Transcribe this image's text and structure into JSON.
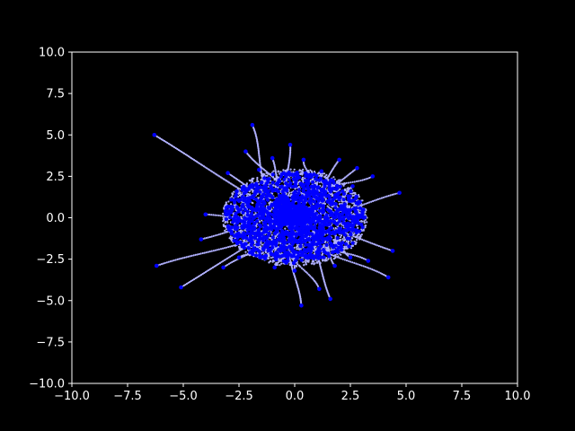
{
  "colors": {
    "background": "#000000",
    "axes": "#ffffff",
    "point": "#0000ff",
    "trail": "#b0b0ff"
  },
  "chart_data": {
    "type": "scatter",
    "title": "",
    "xlabel": "",
    "ylabel": "",
    "xlim": [
      -10,
      10
    ],
    "ylim": [
      -10,
      10
    ],
    "grid": false,
    "legend": "none",
    "x_ticks": [
      -10.0,
      -7.5,
      -5.0,
      -2.5,
      0.0,
      2.5,
      5.0,
      7.5,
      10.0
    ],
    "y_ticks": [
      -10.0,
      -7.5,
      -5.0,
      -2.5,
      0.0,
      2.5,
      5.0,
      7.5,
      10.0
    ],
    "x_tick_labels": [
      "−10.0",
      "−7.5",
      "−5.0",
      "−2.5",
      "0.0",
      "2.5",
      "5.0",
      "7.5",
      "10.0"
    ],
    "y_tick_labels": [
      "−10.0",
      "−7.5",
      "−5.0",
      "−2.5",
      "0.0",
      "2.5",
      "5.0",
      "7.5",
      "10.0"
    ],
    "series": [
      {
        "values": [
          {
            "x": -6.3,
            "y": 5.0
          },
          {
            "x": -6.2,
            "y": -2.9
          },
          {
            "x": -5.1,
            "y": -4.2
          },
          {
            "x": -1.9,
            "y": 5.6
          },
          {
            "x": -0.2,
            "y": 4.4
          },
          {
            "x": 0.3,
            "y": -5.3
          },
          {
            "x": 1.6,
            "y": -4.9
          },
          {
            "x": 4.7,
            "y": 1.5
          },
          {
            "x": 4.2,
            "y": -3.6
          },
          {
            "x": 4.4,
            "y": -2.0
          },
          {
            "x": 3.5,
            "y": 2.5
          },
          {
            "x": 2.8,
            "y": 3.0
          },
          {
            "x": -2.2,
            "y": 4.0
          },
          {
            "x": -3.0,
            "y": 2.7
          },
          {
            "x": -4.0,
            "y": 0.2
          },
          {
            "x": -4.2,
            "y": -1.3
          },
          {
            "x": -3.2,
            "y": -3.0
          },
          {
            "x": 1.1,
            "y": -4.3
          },
          {
            "x": 3.3,
            "y": -2.6
          },
          {
            "x": 2.0,
            "y": 3.5
          },
          {
            "x": 0.4,
            "y": 3.5
          },
          {
            "x": -1.0,
            "y": 3.6
          },
          {
            "x": 2.6,
            "y": 1.9
          },
          {
            "x": -2.6,
            "y": 1.6
          },
          {
            "x": -2.5,
            "y": -2.4
          },
          {
            "x": 2.5,
            "y": -2.4
          },
          {
            "x": 0.0,
            "y": -3.2
          },
          {
            "x": -0.9,
            "y": -3.0
          },
          {
            "x": 1.8,
            "y": -2.9
          },
          {
            "x": -1.6,
            "y": 2.9
          },
          {
            "x": 1.2,
            "y": 2.8
          },
          {
            "x": 3.1,
            "y": 0.0
          },
          {
            "x": -3.1,
            "y": 0.4
          },
          {
            "x": 0.0,
            "y": 0.0
          },
          {
            "x": 0.5,
            "y": 0.3
          },
          {
            "x": -0.5,
            "y": -0.4
          },
          {
            "x": 0.8,
            "y": -0.6
          },
          {
            "x": -0.7,
            "y": 0.7
          },
          {
            "x": 1.5,
            "y": 1.0
          },
          {
            "x": -1.4,
            "y": -1.2
          },
          {
            "x": 1.0,
            "y": -1.6
          },
          {
            "x": -1.2,
            "y": 1.5
          },
          {
            "x": 2.2,
            "y": -0.8
          },
          {
            "x": -2.1,
            "y": 0.9
          },
          {
            "x": 0.3,
            "y": 2.0
          },
          {
            "x": -0.3,
            "y": -2.1
          },
          {
            "x": 2.0,
            "y": 0.5
          },
          {
            "x": -2.0,
            "y": -0.5
          },
          {
            "x": 1.3,
            "y": 2.2
          },
          {
            "x": -1.3,
            "y": -2.3
          }
        ]
      }
    ]
  }
}
